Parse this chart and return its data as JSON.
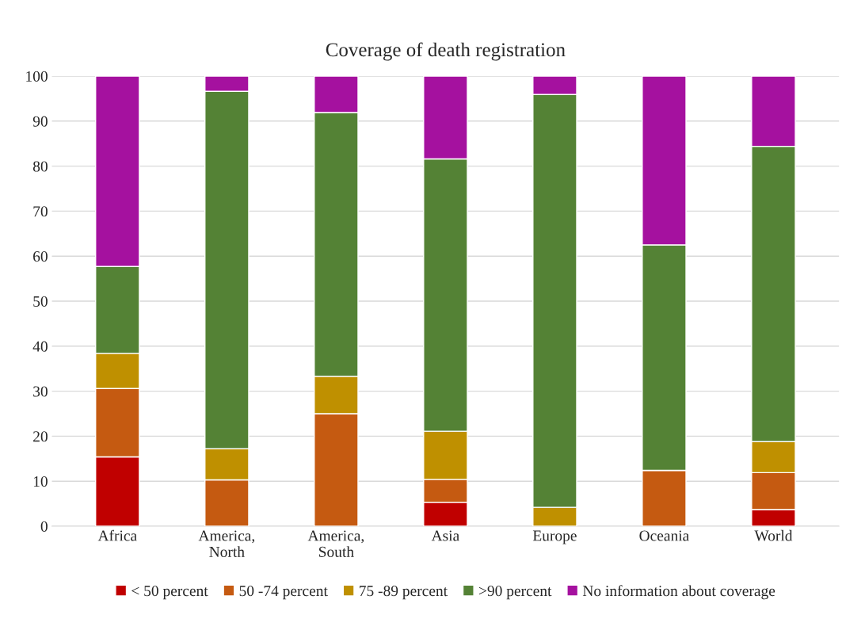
{
  "chart_data": {
    "type": "bar",
    "title": "Coverage of death registration",
    "categories": [
      "Africa",
      "America,\nNorth",
      "America,\nSouth",
      "Asia",
      "Europe",
      "Oceania",
      "World"
    ],
    "stacked": true,
    "series": [
      {
        "name": "< 50 percent",
        "color": "#c00000",
        "values": [
          15.4,
          0,
          0,
          5.3,
          0,
          0,
          3.7
        ]
      },
      {
        "name": "50 -74 percent",
        "color": "#c55a11",
        "values": [
          15.2,
          10.3,
          25.0,
          5.1,
          0,
          12.4,
          8.2
        ]
      },
      {
        "name": "75 -89 percent",
        "color": "#bf9000",
        "values": [
          7.8,
          6.9,
          8.3,
          10.7,
          4.2,
          0,
          6.9
        ]
      },
      {
        "name": ">90 percent",
        "color": "#548235",
        "values": [
          19.3,
          79.4,
          58.6,
          60.5,
          91.7,
          50.1,
          65.6
        ]
      },
      {
        "name": "No information about coverage",
        "color": "#a5119f",
        "values": [
          42.3,
          3.4,
          8.1,
          18.4,
          4.1,
          37.5,
          15.6
        ]
      }
    ],
    "ylim": [
      0,
      100
    ],
    "yticks": [
      0,
      10,
      20,
      30,
      40,
      50,
      60,
      70,
      80,
      90,
      100
    ],
    "grid": "y",
    "legend": "bottom"
  }
}
